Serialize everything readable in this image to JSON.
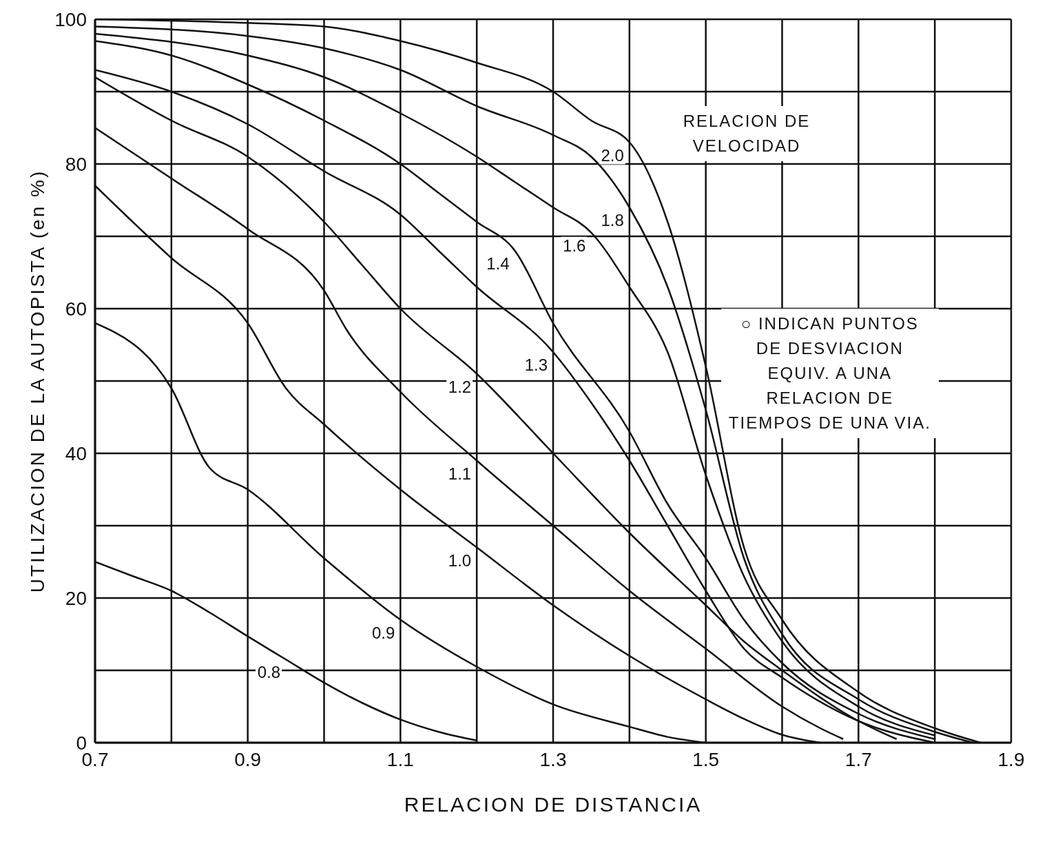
{
  "chart_data": {
    "type": "line",
    "xlabel": "RELACION DE DISTANCIA",
    "ylabel": "UTILIZACION DE LA AUTOPISTA (en %)",
    "xlim": [
      0.7,
      1.9
    ],
    "ylim": [
      0,
      100
    ],
    "xticks": [
      0.7,
      {
        "value": 0.8,
        "label": null
      },
      0.9,
      {
        "value": 1.0,
        "label": null
      },
      1.1,
      {
        "value": 1.2,
        "label": null
      },
      1.3,
      {
        "value": 1.4,
        "label": null
      },
      1.5,
      {
        "value": 1.6,
        "label": null
      },
      1.7,
      {
        "value": 1.8,
        "label": null
      },
      1.9
    ],
    "yticks": [
      0,
      {
        "value": 10,
        "label": null
      },
      20,
      {
        "value": 30,
        "label": null
      },
      40,
      {
        "value": 50,
        "label": null
      },
      60,
      {
        "value": 70,
        "label": null
      },
      80,
      {
        "value": 90,
        "label": null
      },
      100
    ],
    "grid": true,
    "marker": "none",
    "line_style": "solid",
    "annotations": [
      "RELACION DE VELOCIDAD",
      "○ INDICAN PUNTOS DE DESVIACION EQUIV. A UNA RELACION DE TIEMPOS DE UNA VIA."
    ],
    "series": [
      {
        "name": "0.8",
        "color": "#111111",
        "x": [
          0.7,
          0.75,
          0.8,
          0.85,
          0.9,
          0.95,
          1.0,
          1.05,
          1.1,
          1.15,
          1.2
        ],
        "values": [
          25,
          23,
          21,
          18,
          14.7,
          11.5,
          8.3,
          5.5,
          3.2,
          1.5,
          0.3
        ]
      },
      {
        "name": "0.9",
        "color": "#111111",
        "x": [
          0.7,
          0.8,
          0.85,
          0.9,
          1.0,
          1.1,
          1.2,
          1.3,
          1.4,
          1.45,
          1.5
        ],
        "values": [
          58,
          49,
          38,
          35,
          25.5,
          17,
          10.5,
          5.3,
          2.2,
          0.8,
          0
        ]
      },
      {
        "name": "1.0",
        "color": "#111111",
        "x": [
          0.7,
          0.8,
          0.9,
          0.95,
          1.0,
          1.1,
          1.2,
          1.3,
          1.4,
          1.5,
          1.55,
          1.6,
          1.65
        ],
        "values": [
          77,
          67,
          58,
          49,
          44,
          35,
          27,
          19,
          12,
          6,
          3.3,
          1.1,
          0
        ]
      },
      {
        "name": "1.1",
        "color": "#111111",
        "x": [
          0.7,
          0.8,
          0.9,
          1.0,
          1.03,
          1.1,
          1.2,
          1.3,
          1.4,
          1.5,
          1.6,
          1.65,
          1.68
        ],
        "values": [
          85,
          78,
          71,
          62.5,
          57,
          48.5,
          39,
          30,
          21,
          13,
          5,
          2,
          0.5
        ]
      },
      {
        "name": "1.2",
        "color": "#111111",
        "x": [
          0.7,
          0.8,
          0.9,
          1.0,
          1.05,
          1.1,
          1.2,
          1.3,
          1.4,
          1.5,
          1.55,
          1.6,
          1.7,
          1.75
        ],
        "values": [
          92,
          86,
          81,
          72,
          66,
          60,
          51,
          40,
          29,
          19,
          14,
          10,
          3,
          0.5
        ]
      },
      {
        "name": "1.3",
        "color": "#111111",
        "x": [
          0.7,
          0.8,
          0.9,
          1.0,
          1.1,
          1.15,
          1.2,
          1.3,
          1.35,
          1.4,
          1.45,
          1.5,
          1.55,
          1.6,
          1.7,
          1.8
        ],
        "values": [
          93,
          90,
          85.5,
          79,
          73,
          68,
          63,
          54,
          47,
          39,
          30,
          21,
          13,
          9,
          3,
          0
        ]
      },
      {
        "name": "1.4",
        "color": "#111111",
        "x": [
          0.7,
          0.8,
          0.9,
          1.0,
          1.1,
          1.15,
          1.2,
          1.25,
          1.3,
          1.4,
          1.45,
          1.5,
          1.55,
          1.6,
          1.7,
          1.8
        ],
        "values": [
          97,
          95,
          91,
          86,
          80,
          76,
          72,
          68,
          58,
          43,
          33,
          25.5,
          17,
          11,
          4,
          0.5
        ]
      },
      {
        "name": "1.6",
        "color": "#111111",
        "x": [
          0.7,
          0.9,
          1.0,
          1.1,
          1.2,
          1.25,
          1.3,
          1.35,
          1.4,
          1.45,
          1.5,
          1.55,
          1.6,
          1.7,
          1.8
        ],
        "values": [
          98,
          95,
          92,
          87,
          81,
          77.5,
          74,
          70.5,
          63,
          54,
          37,
          23,
          14,
          5,
          1
        ]
      },
      {
        "name": "1.8",
        "color": "#111111",
        "x": [
          0.7,
          0.9,
          1.0,
          1.1,
          1.2,
          1.3,
          1.35,
          1.4,
          1.45,
          1.5,
          1.55,
          1.6,
          1.7,
          1.8,
          1.85
        ],
        "values": [
          99,
          97.7,
          96,
          93,
          88,
          84,
          81,
          74,
          63,
          46,
          25.5,
          15,
          6,
          1.5,
          0
        ]
      },
      {
        "name": "2.0",
        "color": "#111111",
        "x": [
          0.7,
          0.9,
          1.0,
          1.1,
          1.2,
          1.3,
          1.35,
          1.4,
          1.45,
          1.5,
          1.55,
          1.6,
          1.7,
          1.8,
          1.86
        ],
        "values": [
          100,
          99.5,
          99,
          97,
          94,
          90,
          86,
          83,
          72,
          52,
          27,
          17,
          7,
          2,
          0
        ]
      }
    ]
  }
}
